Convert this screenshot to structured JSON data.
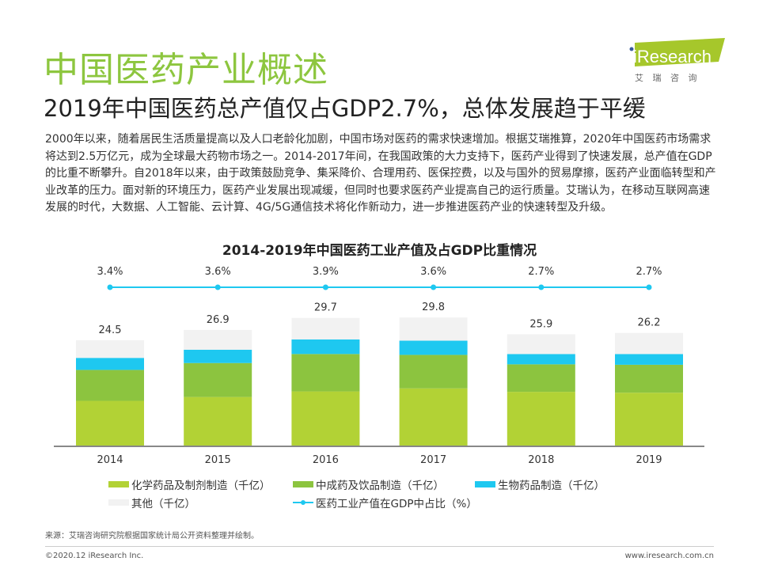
{
  "header": {
    "title": "中国医药产业概述",
    "subtitle": "2019年中国医药总产值仅占GDP2.7%，总体发展趋于平缓",
    "logo_text": "iResearch",
    "logo_cn": "艾 瑞 咨 询",
    "brand_color": "#a6c72b"
  },
  "body_text": "2000年以来，随着居民生活质量提高以及人口老龄化加剧，中国市场对医药的需求快速增加。根据艾瑞推算，2020年中国医药市场需求将达到2.5万亿元，成为全球最大药物市场之一。2014-2017年间，在我国政策的大力支持下，医药产业得到了快速发展，总产值在GDP的比重不断攀升。自2018年以来，由于政策鼓励竞争、集采降价、合理用药、医保控费，以及与国外的贸易摩擦，医药产业面临转型和产业改革的压力。面对新的环境压力，医药产业发展出现减缓，但同时也要求医药产业提高自己的运行质量。艾瑞认为，在移动互联网高速发展的时代，大数据、人工智能、云计算、4G/5G通信技术将化作新动力，进一步推进医药产业的快速转型及升级。",
  "chart_data": {
    "type": "bar",
    "stacked": true,
    "title": "2014-2019年中国医药工业产值及占GDP比重情况",
    "categories": [
      "2014",
      "2015",
      "2016",
      "2017",
      "2018",
      "2019"
    ],
    "series": [
      {
        "name": "化学药品及制剂制造（千亿）",
        "color": "#b2d235",
        "values": [
          10.4,
          11.3,
          12.6,
          13.3,
          12.5,
          12.3
        ]
      },
      {
        "name": "中成药及饮品制造（千亿）",
        "color": "#8cc43f",
        "values": [
          7.2,
          7.9,
          8.7,
          7.8,
          6.4,
          6.5
        ]
      },
      {
        "name": "生物药品制造（千亿）",
        "color": "#1ec8f0",
        "values": [
          2.8,
          3.1,
          3.4,
          3.3,
          2.4,
          2.5
        ]
      },
      {
        "name": "其他（千亿）",
        "color": "#f2f2f2",
        "values": [
          4.1,
          4.6,
          5.0,
          5.4,
          4.6,
          4.9
        ]
      }
    ],
    "totals": [
      "24.5",
      "26.9",
      "29.7",
      "29.8",
      "25.9",
      "26.2"
    ],
    "line_series": {
      "name": "医药工业产值在GDP中占比（%）",
      "color": "#1ec8f0",
      "values": [
        3.4,
        3.6,
        3.9,
        3.6,
        2.7,
        2.7
      ],
      "labels": [
        "3.4%",
        "3.6%",
        "3.9%",
        "3.6%",
        "2.7%",
        "2.7%"
      ]
    },
    "legend_placement": "bottom",
    "grid": false
  },
  "footer": {
    "source": "来源：艾瑞咨询研究院根据国家统计局公开资料整理并绘制。",
    "copyright": "©2020.12 iResearch Inc.",
    "website": "www.iresearch.com.cn"
  }
}
